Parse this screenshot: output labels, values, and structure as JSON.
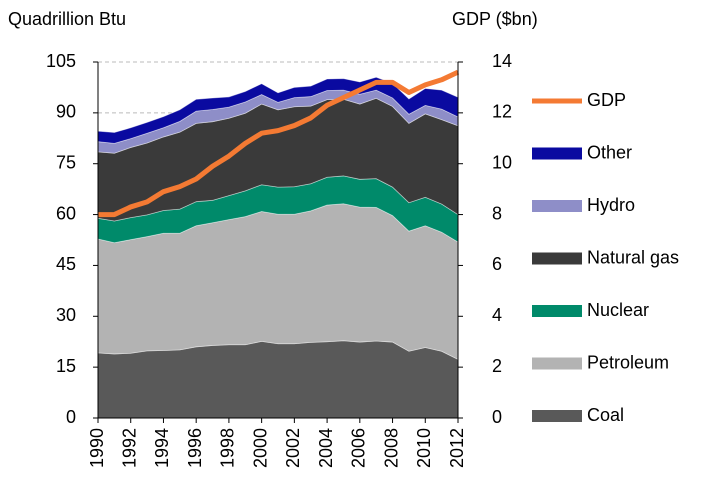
{
  "chart_data": {
    "type": "stacked-area-line",
    "y_label": "Quadrillion Btu",
    "y2_label": "GDP ($bn)",
    "x": [
      1990,
      1991,
      1992,
      1993,
      1994,
      1995,
      1996,
      1997,
      1998,
      1999,
      2000,
      2001,
      2002,
      2003,
      2004,
      2005,
      2006,
      2007,
      2008,
      2009,
      2010,
      2011,
      2012
    ],
    "xlim": [
      1990,
      2012
    ],
    "xticks": [
      1990,
      1992,
      1994,
      1996,
      1998,
      2000,
      2002,
      2004,
      2006,
      2008,
      2010,
      2012
    ],
    "ylim": [
      0,
      105
    ],
    "yticks": [
      0,
      15,
      30,
      45,
      60,
      75,
      90,
      105
    ],
    "y2lim": [
      0,
      14
    ],
    "y2ticks": [
      0,
      2,
      4,
      6,
      8,
      10,
      12,
      14
    ],
    "grid": true,
    "series": [
      {
        "name": "Coal",
        "color": "#595959",
        "values": [
          19.2,
          18.9,
          19.1,
          19.8,
          19.9,
          20.1,
          21.0,
          21.4,
          21.6,
          21.6,
          22.6,
          21.9,
          21.9,
          22.3,
          22.5,
          22.8,
          22.4,
          22.7,
          22.4,
          19.7,
          20.8,
          19.7,
          17.3
        ]
      },
      {
        "name": "Petroleum",
        "color": "#b3b3b3",
        "values": [
          33.6,
          32.8,
          33.5,
          33.7,
          34.6,
          34.4,
          35.7,
          36.2,
          36.9,
          37.8,
          38.3,
          38.2,
          38.2,
          38.8,
          40.3,
          40.4,
          39.8,
          39.4,
          37.3,
          35.4,
          35.9,
          35.1,
          34.6
        ]
      },
      {
        "name": "Nuclear",
        "color": "#008a6a",
        "values": [
          6.1,
          6.4,
          6.5,
          6.4,
          6.7,
          7.1,
          7.1,
          6.6,
          7.1,
          7.6,
          7.9,
          8.0,
          8.1,
          8.0,
          8.2,
          8.2,
          8.2,
          8.5,
          8.4,
          8.4,
          8.4,
          8.3,
          8.1
        ]
      },
      {
        "name": "Natural gas",
        "color": "#3a3a3a",
        "values": [
          19.6,
          20.0,
          20.7,
          21.2,
          21.7,
          22.7,
          23.1,
          23.2,
          22.8,
          22.9,
          23.8,
          22.8,
          23.6,
          22.9,
          22.9,
          22.6,
          22.2,
          23.7,
          23.8,
          23.4,
          24.6,
          24.9,
          26.2
        ]
      },
      {
        "name": "Hydro",
        "color": "#8e8ec8",
        "values": [
          3.0,
          2.9,
          2.6,
          2.9,
          2.7,
          3.2,
          3.6,
          3.6,
          3.3,
          3.3,
          2.8,
          2.2,
          2.7,
          2.8,
          2.7,
          2.7,
          2.9,
          2.4,
          2.5,
          2.7,
          2.5,
          3.1,
          2.6
        ]
      },
      {
        "name": "Other",
        "color": "#0a0aa0",
        "values": [
          3.1,
          3.2,
          3.2,
          3.2,
          3.3,
          3.4,
          3.5,
          3.4,
          3.0,
          3.1,
          3.2,
          2.8,
          3.0,
          3.1,
          3.4,
          3.4,
          3.6,
          3.8,
          4.3,
          4.5,
          5.0,
          5.6,
          5.8
        ]
      },
      {
        "name": "GDP",
        "color": "#f47a33",
        "axis": "y2",
        "values": [
          8.0,
          8.0,
          8.3,
          8.5,
          8.9,
          9.1,
          9.4,
          9.9,
          10.3,
          10.8,
          11.2,
          11.3,
          11.5,
          11.8,
          12.3,
          12.6,
          12.9,
          13.2,
          13.2,
          12.8,
          13.1,
          13.3,
          13.6
        ]
      }
    ]
  }
}
